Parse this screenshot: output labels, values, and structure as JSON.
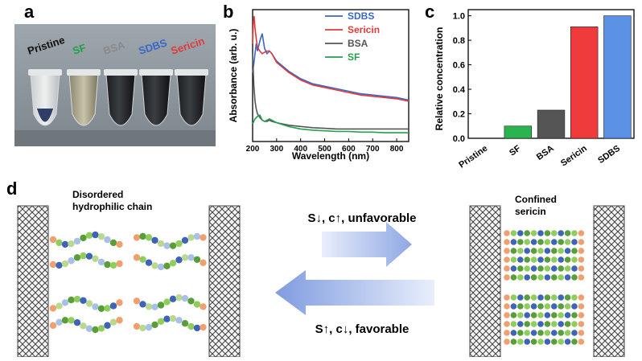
{
  "panel_letters": {
    "a": "a",
    "b": "b",
    "c": "c",
    "d": "d"
  },
  "photo": {
    "labels": [
      {
        "text": "Pristine",
        "color": "#111111"
      },
      {
        "text": "SF",
        "color": "#22a04b"
      },
      {
        "text": "BSA",
        "color": "#8a8a8a"
      },
      {
        "text": "SDBS",
        "color": "#3a66c8"
      },
      {
        "text": "Sericin",
        "color": "#e03a3a"
      }
    ]
  },
  "chart_data": [
    {
      "type": "line",
      "xlabel": "Wavelength (nm)",
      "ylabel": "Absorbance (arb. u.)",
      "xlim": [
        200,
        850
      ],
      "xticks": [
        200,
        300,
        400,
        500,
        600,
        700,
        800
      ],
      "legend_placement": "top-right",
      "series": [
        {
          "name": "SDBS",
          "color": "#3a66c8",
          "x": [
            200,
            205,
            210,
            215,
            220,
            230,
            240,
            250,
            260,
            270,
            280,
            300,
            350,
            400,
            450,
            500,
            550,
            600,
            650,
            700,
            750,
            800,
            850
          ],
          "y": [
            0.55,
            0.62,
            0.7,
            0.78,
            0.72,
            0.8,
            0.86,
            0.74,
            0.7,
            0.72,
            0.7,
            0.64,
            0.56,
            0.5,
            0.46,
            0.44,
            0.42,
            0.4,
            0.38,
            0.37,
            0.36,
            0.35,
            0.33
          ]
        },
        {
          "name": "Sericin",
          "color": "#e03a3a",
          "x": [
            200,
            203,
            206,
            210,
            215,
            220,
            230,
            240,
            250,
            260,
            270,
            280,
            300,
            350,
            400,
            450,
            500,
            550,
            600,
            650,
            700,
            750,
            800,
            850
          ],
          "y": [
            0.78,
            0.95,
            1.0,
            0.9,
            0.82,
            0.75,
            0.72,
            0.7,
            0.71,
            0.72,
            0.72,
            0.7,
            0.63,
            0.55,
            0.49,
            0.45,
            0.43,
            0.41,
            0.39,
            0.37,
            0.36,
            0.35,
            0.34,
            0.32
          ]
        },
        {
          "name": "BSA",
          "color": "#555555",
          "x": [
            200,
            205,
            210,
            215,
            220,
            230,
            240,
            250,
            260,
            270,
            280,
            300,
            350,
            400,
            450,
            500,
            550,
            600,
            650,
            700,
            750,
            800,
            850
          ],
          "y": [
            0.7,
            0.45,
            0.32,
            0.26,
            0.22,
            0.19,
            0.17,
            0.16,
            0.16,
            0.17,
            0.16,
            0.15,
            0.13,
            0.12,
            0.11,
            0.105,
            0.1,
            0.1,
            0.1,
            0.1,
            0.1,
            0.1,
            0.1
          ]
        },
        {
          "name": "SF",
          "color": "#22a04b",
          "x": [
            200,
            210,
            220,
            230,
            240,
            250,
            260,
            270,
            280,
            300,
            350,
            400,
            450,
            500,
            550,
            600,
            650,
            700,
            750,
            800,
            850
          ],
          "y": [
            0.14,
            0.18,
            0.2,
            0.21,
            0.17,
            0.16,
            0.17,
            0.18,
            0.17,
            0.15,
            0.12,
            0.1,
            0.09,
            0.085,
            0.08,
            0.08,
            0.075,
            0.075,
            0.07,
            0.07,
            0.07
          ]
        }
      ]
    },
    {
      "type": "bar",
      "ylabel": "Relative concentration",
      "categories": [
        "Pristine",
        "SF",
        "BSA",
        "Sericin",
        "SDBS"
      ],
      "values": [
        0,
        0.1,
        0.23,
        0.91,
        1.0
      ],
      "colors": [
        "#cccccc",
        "#2ab34f",
        "#555555",
        "#ef3b3b",
        "#5b92e5"
      ],
      "ylim": [
        0,
        1.05
      ],
      "yticks": [
        "0.0",
        "0.2",
        "0.4",
        "0.6",
        "0.8",
        "1.0"
      ]
    }
  ],
  "schematic": {
    "left_label_line1": "Disordered",
    "left_label_line2": "hydrophilic chain",
    "right_label_line1": "Confined",
    "right_label_line2": "sericin",
    "top_arrow_text": "S↓, c↑, unfavorable",
    "bottom_arrow_text": "S↑, c↓, favorable"
  }
}
